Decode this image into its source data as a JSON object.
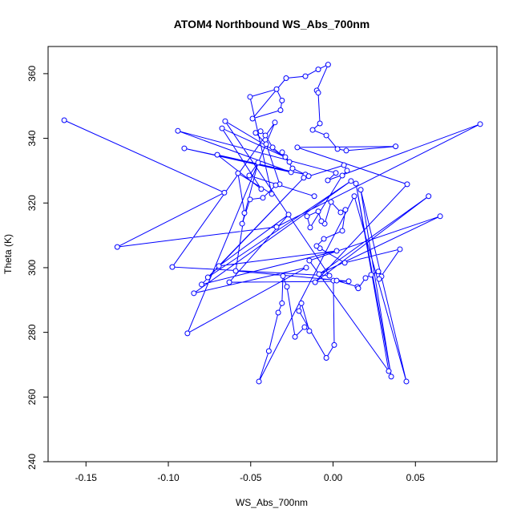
{
  "chart_data": {
    "type": "line",
    "title": "ATOM4 Northbound WS_Abs_700nm",
    "x_label": "WS_Abs_700nm",
    "y_label": "Theta (K)",
    "color": "#0000ff",
    "xlim": [
      -0.173,
      0.0995
    ],
    "ylim": [
      240,
      368.4
    ],
    "xticks": [
      -0.15,
      {
        "value": -0.1,
        "label": "-0.10"
      },
      -0.05,
      {
        "value": 0,
        "label": "0.00"
      },
      0.05
    ],
    "yticks": [
      240,
      260,
      280,
      300,
      320,
      340,
      360
    ],
    "x": [
      -0.1632,
      -0.066,
      -0.131,
      -0.0343,
      0.0893,
      -0.0032,
      0.0017,
      -0.0942,
      -0.0255,
      -0.0903,
      -0.0168,
      -0.0703,
      -0.0436,
      -0.0674,
      -0.029,
      -0.0655,
      -0.0022,
      -0.0976,
      -0.0353,
      -0.0884,
      -0.0163,
      -0.0845,
      0.0109,
      -0.076,
      -0.0178,
      -0.0798,
      0.0022,
      -0.0693,
      -0.027,
      -0.063,
      0.0095,
      -0.0591,
      -0.0538,
      -0.0577,
      -0.0372,
      -0.0504,
      -0.0343,
      -0.031,
      -0.0319,
      -0.0489,
      -0.0285,
      -0.0168,
      -0.009,
      -0.003,
      -0.0099,
      -0.009,
      -0.008,
      -0.0124,
      -0.0041,
      0.0027,
      0.008,
      0.038,
      -0.0217,
      0.045,
      -0.0109,
      0.058,
      -0.0085,
      0.065,
      -0.0144,
      0.0338,
      0.0139,
      0.0353,
      0.0168,
      0.0445,
      0.0129,
      -0.045,
      -0.039,
      -0.0333,
      -0.031,
      -0.0304,
      -0.028,
      -0.0231,
      -0.0173,
      -0.0144,
      -0.0192,
      -0.0207,
      -0.0041,
      0.0007,
      0.0002,
      0.0022,
      0.0148,
      0.0153,
      0.0197,
      0.0231,
      0.0275,
      0.0294,
      0.028,
      0.0406,
      0.0071,
      -0.008,
      -0.01,
      -0.0056,
      0.0056,
      0.0075,
      0.0046,
      -0.0012,
      -0.0051,
      -0.0071,
      -0.009,
      -0.0158,
      -0.0139,
      0.0056,
      0.0085,
      0.0066,
      -0.0148,
      -0.0246,
      -0.0309,
      -0.0265,
      -0.0367,
      -0.0411,
      -0.044,
      -0.047,
      -0.0406,
      -0.0324,
      -0.0348,
      -0.0426,
      -0.0504,
      -0.0552,
      -0.0455,
      -0.0509,
      -0.0114
    ],
    "series": [
      {
        "name": "Theta",
        "color": "#0000ff",
        "values": [
          345.6,
          323.2,
          306.4,
          312.6,
          344.4,
          327.0,
          329.3,
          342.3,
          329.5,
          336.9,
          328.8,
          334.9,
          324.3,
          343.1,
          334.2,
          345.3,
          297.5,
          300.2,
          344.9,
          279.7,
          300.0,
          292.1,
          326.8,
          297.0,
          327.8,
          294.8,
          305.2,
          300.5,
          316.4,
          295.5,
          295.8,
          299.0,
          316.9,
          329.2,
          322.8,
          352.8,
          355.2,
          351.7,
          348.7,
          346.1,
          358.6,
          359.2,
          361.3,
          362.8,
          354.8,
          354.1,
          344.6,
          342.6,
          340.9,
          336.7,
          336.2,
          337.5,
          337.2,
          325.8,
          295.5,
          322.1,
          298.0,
          315.9,
          302.2,
          268.0,
          326.0,
          266.3,
          324.1,
          264.8,
          322.1,
          264.8,
          274.2,
          286.1,
          289.0,
          297.4,
          294.1,
          278.6,
          281.6,
          280.4,
          289.0,
          286.6,
          272.1,
          276.1,
          296.0,
          296.0,
          294.1,
          293.6,
          296.8,
          297.8,
          298.8,
          297.3,
          296.5,
          305.7,
          301.5,
          306.0,
          306.7,
          308.9,
          311.4,
          317.9,
          317.1,
          320.3,
          313.6,
          314.4,
          317.4,
          315.9,
          312.4,
          328.5,
          330.0,
          331.7,
          328.3,
          330.7,
          335.7,
          332.7,
          337.2,
          340.9,
          342.2,
          341.7,
          338.2,
          325.8,
          325.5,
          321.6,
          321.1,
          313.6,
          332.5,
          328.5,
          322.1
        ]
      }
    ]
  }
}
